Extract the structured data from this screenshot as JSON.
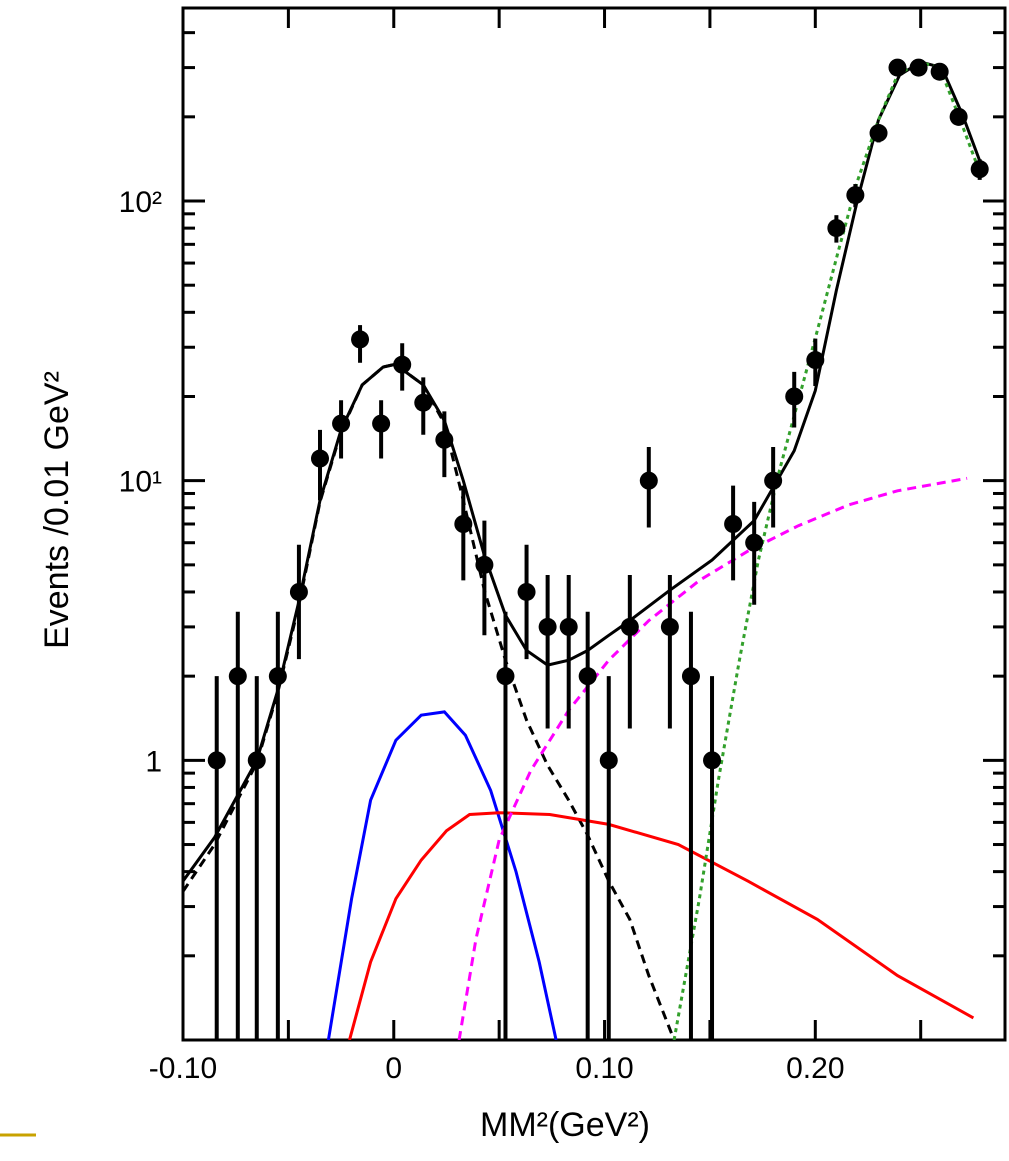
{
  "chart_data": {
    "type": "scatter",
    "x_label": "MM²(GeV²)",
    "y_label": "Events /0.01 GeV²",
    "xlim": [
      -0.1,
      0.29
    ],
    "ylim": [
      0.1,
      490
    ],
    "ylog": true,
    "xticks": [
      {
        "value": -0.1,
        "label": "-0.10"
      },
      0,
      {
        "value": 0.1,
        "label": "0.10"
      },
      {
        "value": 0.2,
        "label": "0.20"
      }
    ],
    "xminor_ticks": [
      -0.05,
      0.05,
      0.15,
      0.25
    ],
    "yticks": [
      1,
      {
        "value": 10,
        "label": "10¹"
      },
      {
        "value": 100,
        "label": "10²"
      }
    ],
    "color": "#000000",
    "x": [
      -0.084,
      -0.074,
      -0.065,
      -0.055,
      -0.045,
      -0.035,
      -0.025,
      -0.016,
      -0.006,
      0.004,
      0.014,
      0.024,
      0.033,
      0.043,
      0.053,
      0.063,
      0.073,
      0.083,
      0.092,
      0.102,
      0.112,
      0.121,
      0.131,
      0.141,
      0.151,
      0.161,
      0.171,
      0.18,
      0.19,
      0.2,
      0.21,
      0.219,
      0.23,
      0.239,
      0.249,
      0.259,
      0.268,
      0.278
    ],
    "values": [
      1,
      2,
      1,
      2,
      4,
      12,
      16,
      32,
      16,
      26,
      19,
      14,
      7,
      5,
      2,
      4,
      3,
      3,
      2,
      1,
      3,
      10,
      3,
      2,
      1,
      7,
      6,
      10,
      20,
      27,
      80,
      105,
      175,
      300,
      300,
      290,
      200,
      130
    ],
    "yerr_minus": [
      1,
      2,
      1,
      2,
      1.7,
      3.5,
      4,
      5.6,
      4,
      5,
      4.4,
      3.7,
      2.6,
      2.2,
      2,
      1.7,
      1.7,
      1.7,
      2,
      1,
      1.7,
      3.2,
      1.7,
      2,
      1,
      2.6,
      2.4,
      3.2,
      4.5,
      5.2,
      9,
      10,
      13,
      17,
      17,
      17,
      14,
      11
    ],
    "yerr_plus": [
      1,
      1.4,
      1,
      1.4,
      1.9,
      3.2,
      3.4,
      4,
      3.4,
      5,
      4.4,
      3.7,
      2.6,
      2.2,
      1.4,
      1.9,
      1.6,
      1.6,
      1.4,
      1,
      1.6,
      3.2,
      1.6,
      1.4,
      1,
      2.6,
      2.4,
      3.2,
      4.5,
      5.2,
      9,
      10,
      13,
      17,
      17,
      17,
      14,
      11
    ],
    "series": [
      {
        "color": "#000000",
        "style": "solid",
        "x": [
          -0.1,
          -0.085,
          -0.065,
          -0.055,
          -0.045,
          -0.035,
          -0.025,
          -0.015,
          -0.005,
          0,
          0.004,
          0.014,
          0.024,
          0.033,
          0.043,
          0.053,
          0.063,
          0.073,
          0.083,
          0.092,
          0.102,
          0.112,
          0.131,
          0.151,
          0.171,
          0.19,
          0.2,
          0.21,
          0.22,
          0.23,
          0.24,
          0.25,
          0.26,
          0.27,
          0.28
        ],
        "values": [
          0.37,
          0.53,
          1.0,
          1.78,
          3.7,
          8.5,
          15.2,
          22,
          25.5,
          26,
          25,
          22,
          16.4,
          10,
          5.4,
          3.3,
          2.47,
          2.19,
          2.28,
          2.47,
          2.8,
          3.16,
          4.06,
          5.2,
          7.2,
          12.8,
          21,
          48,
          101,
          195,
          282,
          314,
          300,
          202,
          127
        ]
      },
      {
        "color": "#000000",
        "style": "dashed",
        "x": [
          -0.1,
          -0.085,
          -0.065,
          -0.055,
          -0.045,
          -0.035,
          -0.025,
          -0.015,
          -0.005,
          0,
          0.004,
          0.014,
          0.024,
          0.033,
          0.043,
          0.053,
          0.063,
          0.073,
          0.083,
          0.092,
          0.102,
          0.112,
          0.121,
          0.133
        ],
        "values": [
          0.34,
          0.5,
          0.98,
          1.75,
          3.6,
          8.4,
          15,
          22,
          25.5,
          26,
          25,
          22,
          16,
          8.5,
          4.06,
          2.28,
          1.39,
          0.96,
          0.72,
          0.54,
          0.37,
          0.27,
          0.17,
          0.1
        ]
      },
      {
        "color": "#0000ff",
        "style": "solid",
        "x": [
          -0.031,
          -0.02,
          -0.011,
          0.001,
          0.013,
          0.024,
          0.034,
          0.046,
          0.058,
          0.069,
          0.077
        ],
        "values": [
          0.1,
          0.32,
          0.72,
          1.18,
          1.45,
          1.49,
          1.23,
          0.78,
          0.4,
          0.19,
          0.1
        ]
      },
      {
        "color": "#ff0000",
        "style": "solid",
        "x": [
          -0.021,
          -0.011,
          0.001,
          0.013,
          0.025,
          0.036,
          0.05,
          0.074,
          0.102,
          0.135,
          0.168,
          0.201,
          0.239,
          0.275
        ],
        "values": [
          0.1,
          0.19,
          0.32,
          0.44,
          0.56,
          0.64,
          0.65,
          0.64,
          0.59,
          0.5,
          0.37,
          0.27,
          0.17,
          0.12
        ]
      },
      {
        "color": "#ff00ff",
        "style": "dashed",
        "x": [
          0.031,
          0.039,
          0.05,
          0.065,
          0.083,
          0.102,
          0.121,
          0.145,
          0.168,
          0.192,
          0.216,
          0.239,
          0.272
        ],
        "values": [
          0.1,
          0.23,
          0.52,
          0.92,
          1.51,
          2.28,
          3.16,
          4.4,
          5.6,
          6.9,
          8.2,
          9.2,
          10.2
        ]
      },
      {
        "color": "#33a02c",
        "style": "dotted",
        "x": [
          0.133,
          0.145,
          0.154,
          0.164,
          0.173,
          0.183,
          0.192,
          0.201,
          0.211,
          0.22,
          0.23,
          0.239,
          0.249,
          0.259,
          0.268,
          0.278
        ],
        "values": [
          0.1,
          0.32,
          0.85,
          2.28,
          5.2,
          10.9,
          19.4,
          34.5,
          66.6,
          118,
          195,
          282,
          314,
          300,
          202,
          127
        ]
      }
    ]
  }
}
